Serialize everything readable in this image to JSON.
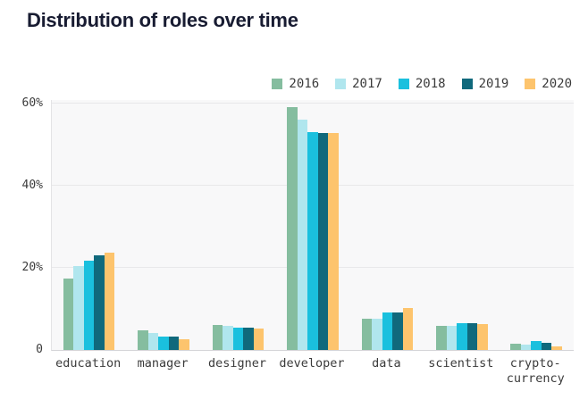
{
  "page": {
    "title": "Distribution of roles over time"
  },
  "chart_data": {
    "type": "bar",
    "title": "Distribution of roles over time",
    "categories": [
      "education",
      "manager",
      "designer",
      "developer",
      "data",
      "scientist",
      "crypto-currency"
    ],
    "series": [
      {
        "name": "2016",
        "color": "#85bd9f",
        "values": [
          17.4,
          4.8,
          6.0,
          59.2,
          7.5,
          5.9,
          1.5
        ]
      },
      {
        "name": "2017",
        "color": "#b0e6ee",
        "values": [
          20.5,
          4.1,
          5.9,
          56.0,
          7.5,
          5.8,
          1.3
        ]
      },
      {
        "name": "2018",
        "color": "#1ac0de",
        "values": [
          21.8,
          3.3,
          5.4,
          53.0,
          9.1,
          6.5,
          2.2
        ]
      },
      {
        "name": "2019",
        "color": "#10697c",
        "values": [
          23.0,
          3.3,
          5.4,
          52.8,
          9.1,
          6.5,
          1.7
        ]
      },
      {
        "name": "2020",
        "color": "#fdc46d",
        "values": [
          23.8,
          2.6,
          5.2,
          52.8,
          10.2,
          6.3,
          0.9
        ]
      }
    ],
    "xlabel": "",
    "ylabel": "",
    "unit": "%",
    "ylim": [
      0,
      61
    ],
    "y_ticks": [
      {
        "value": 0,
        "label": "0"
      },
      {
        "value": 20,
        "label": "20%"
      },
      {
        "value": 40,
        "label": "40%"
      },
      {
        "value": 60,
        "label": "60%"
      }
    ],
    "grid": true,
    "legend_position": "top-right",
    "colors": {
      "title_text": "#181c32",
      "axis_text": "#3b3b3b",
      "plot_background": "#f8f8f9",
      "gridline": "#e8e8ea",
      "axis_line": "#d5d5d8",
      "page_background": "#ffffff"
    }
  }
}
